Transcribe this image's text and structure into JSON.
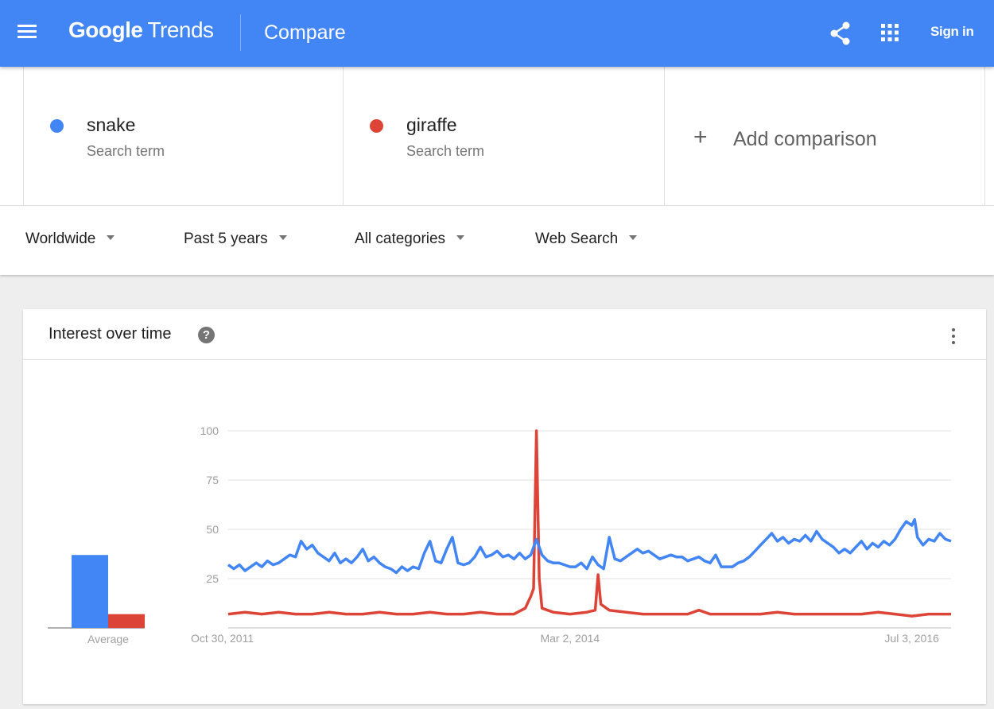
{
  "header": {
    "brand_google": "Google",
    "brand_trends": "Trends",
    "page_title": "Compare",
    "sign_in": "Sign in",
    "background_color": "#4285f4"
  },
  "terms": [
    {
      "name": "snake",
      "type": "Search term",
      "color": "#4285f4"
    },
    {
      "name": "giraffe",
      "type": "Search term",
      "color": "#db4437"
    }
  ],
  "add_comparison": "Add comparison",
  "filters": [
    {
      "label": "Worldwide"
    },
    {
      "label": "Past 5 years"
    },
    {
      "label": "All categories"
    },
    {
      "label": "Web Search"
    }
  ],
  "card": {
    "title": "Interest over time",
    "help_icon": "?"
  },
  "chart_data": {
    "type": "line",
    "title": "Interest over time",
    "ylim": [
      0,
      100
    ],
    "yticks": [
      25,
      50,
      75,
      100
    ],
    "xticks": [
      "Oct 30, 2011",
      "Mar 2, 2014",
      "Jul 3, 2016"
    ],
    "x_start": "Oct 30, 2011",
    "x_end": "Aug 2016",
    "grid": true,
    "series": [
      {
        "name": "snake",
        "color": "#4285f4",
        "average": 37,
        "points": [
          [
            "2011-10-30",
            32
          ],
          [
            "2011-11-13",
            30
          ],
          [
            "2011-11-27",
            32
          ],
          [
            "2011-12-11",
            29
          ],
          [
            "2011-12-25",
            31
          ],
          [
            "2012-01-08",
            33
          ],
          [
            "2012-01-22",
            31
          ],
          [
            "2012-02-05",
            34
          ],
          [
            "2012-02-19",
            32
          ],
          [
            "2012-03-04",
            33
          ],
          [
            "2012-03-18",
            35
          ],
          [
            "2012-04-01",
            37
          ],
          [
            "2012-04-15",
            36
          ],
          [
            "2012-04-29",
            44
          ],
          [
            "2012-05-13",
            40
          ],
          [
            "2012-05-27",
            42
          ],
          [
            "2012-06-10",
            38
          ],
          [
            "2012-06-24",
            36
          ],
          [
            "2012-07-08",
            34
          ],
          [
            "2012-07-22",
            38
          ],
          [
            "2012-08-05",
            33
          ],
          [
            "2012-08-19",
            35
          ],
          [
            "2012-09-02",
            33
          ],
          [
            "2012-09-16",
            36
          ],
          [
            "2012-09-30",
            40
          ],
          [
            "2012-10-14",
            34
          ],
          [
            "2012-10-28",
            36
          ],
          [
            "2012-11-11",
            33
          ],
          [
            "2012-11-25",
            31
          ],
          [
            "2012-12-09",
            30
          ],
          [
            "2012-12-23",
            28
          ],
          [
            "2013-01-06",
            31
          ],
          [
            "2013-01-20",
            29
          ],
          [
            "2013-02-03",
            31
          ],
          [
            "2013-02-17",
            30
          ],
          [
            "2013-03-03",
            38
          ],
          [
            "2013-03-17",
            44
          ],
          [
            "2013-03-31",
            34
          ],
          [
            "2013-04-14",
            33
          ],
          [
            "2013-04-28",
            40
          ],
          [
            "2013-05-12",
            46
          ],
          [
            "2013-05-26",
            33
          ],
          [
            "2013-06-09",
            32
          ],
          [
            "2013-06-23",
            33
          ],
          [
            "2013-07-07",
            36
          ],
          [
            "2013-07-21",
            41
          ],
          [
            "2013-08-04",
            36
          ],
          [
            "2013-08-18",
            37
          ],
          [
            "2013-09-01",
            39
          ],
          [
            "2013-09-15",
            36
          ],
          [
            "2013-09-29",
            37
          ],
          [
            "2013-10-13",
            35
          ],
          [
            "2013-10-27",
            38
          ],
          [
            "2013-11-10",
            35
          ],
          [
            "2013-11-24",
            37
          ],
          [
            "2013-12-08",
            45
          ],
          [
            "2013-12-22",
            37
          ],
          [
            "2014-01-05",
            34
          ],
          [
            "2014-01-19",
            33
          ],
          [
            "2014-02-02",
            33
          ],
          [
            "2014-02-16",
            32
          ],
          [
            "2014-03-02",
            31
          ],
          [
            "2014-03-16",
            31
          ],
          [
            "2014-03-30",
            33
          ],
          [
            "2014-04-13",
            30
          ],
          [
            "2014-04-27",
            36
          ],
          [
            "2014-05-11",
            32
          ],
          [
            "2014-05-25",
            30
          ],
          [
            "2014-06-08",
            46
          ],
          [
            "2014-06-22",
            35
          ],
          [
            "2014-07-06",
            34
          ],
          [
            "2014-07-20",
            36
          ],
          [
            "2014-08-03",
            38
          ],
          [
            "2014-08-17",
            40
          ],
          [
            "2014-08-31",
            38
          ],
          [
            "2014-09-14",
            39
          ],
          [
            "2014-09-28",
            37
          ],
          [
            "2014-10-12",
            35
          ],
          [
            "2014-10-26",
            36
          ],
          [
            "2014-11-09",
            37
          ],
          [
            "2014-11-23",
            36
          ],
          [
            "2014-12-07",
            36
          ],
          [
            "2014-12-21",
            34
          ],
          [
            "2015-01-04",
            35
          ],
          [
            "2015-01-18",
            36
          ],
          [
            "2015-02-01",
            34
          ],
          [
            "2015-02-15",
            33
          ],
          [
            "2015-03-01",
            37
          ],
          [
            "2015-03-15",
            31
          ],
          [
            "2015-03-29",
            31
          ],
          [
            "2015-04-12",
            31
          ],
          [
            "2015-04-26",
            33
          ],
          [
            "2015-05-10",
            34
          ],
          [
            "2015-05-24",
            36
          ],
          [
            "2015-06-07",
            39
          ],
          [
            "2015-06-21",
            42
          ],
          [
            "2015-07-05",
            45
          ],
          [
            "2015-07-19",
            48
          ],
          [
            "2015-08-02",
            44
          ],
          [
            "2015-08-16",
            46
          ],
          [
            "2015-08-30",
            43
          ],
          [
            "2015-09-13",
            45
          ],
          [
            "2015-09-27",
            44
          ],
          [
            "2015-10-11",
            47
          ],
          [
            "2015-10-25",
            44
          ],
          [
            "2015-11-08",
            49
          ],
          [
            "2015-11-22",
            45
          ],
          [
            "2015-12-06",
            43
          ],
          [
            "2015-12-20",
            41
          ],
          [
            "2016-01-03",
            38
          ],
          [
            "2016-01-17",
            40
          ],
          [
            "2016-01-31",
            38
          ],
          [
            "2016-02-14",
            41
          ],
          [
            "2016-02-28",
            44
          ],
          [
            "2016-03-13",
            40
          ],
          [
            "2016-03-27",
            43
          ],
          [
            "2016-04-10",
            41
          ],
          [
            "2016-04-24",
            44
          ],
          [
            "2016-05-08",
            42
          ],
          [
            "2016-05-22",
            45
          ],
          [
            "2016-06-05",
            50
          ],
          [
            "2016-06-19",
            54
          ],
          [
            "2016-07-03",
            52
          ],
          [
            "2016-07-10",
            55
          ],
          [
            "2016-07-17",
            46
          ],
          [
            "2016-07-31",
            42
          ],
          [
            "2016-08-14",
            45
          ],
          [
            "2016-08-28",
            44
          ],
          [
            "2016-09-11",
            48
          ],
          [
            "2016-09-25",
            45
          ],
          [
            "2016-10-09",
            44
          ]
        ]
      },
      {
        "name": "giraffe",
        "color": "#db4437",
        "average": 7,
        "points": [
          [
            "2011-10-30",
            7
          ],
          [
            "2011-12-11",
            8
          ],
          [
            "2012-01-22",
            7
          ],
          [
            "2012-03-04",
            8
          ],
          [
            "2012-04-15",
            7
          ],
          [
            "2012-05-27",
            7
          ],
          [
            "2012-07-08",
            8
          ],
          [
            "2012-08-19",
            7
          ],
          [
            "2012-09-30",
            7
          ],
          [
            "2012-11-11",
            8
          ],
          [
            "2012-12-23",
            7
          ],
          [
            "2013-02-03",
            7
          ],
          [
            "2013-03-17",
            8
          ],
          [
            "2013-04-28",
            7
          ],
          [
            "2013-06-09",
            7
          ],
          [
            "2013-07-21",
            8
          ],
          [
            "2013-09-01",
            7
          ],
          [
            "2013-10-13",
            7
          ],
          [
            "2013-11-10",
            10
          ],
          [
            "2013-11-24",
            16
          ],
          [
            "2013-12-01",
            20
          ],
          [
            "2013-12-08",
            100
          ],
          [
            "2013-12-15",
            25
          ],
          [
            "2013-12-22",
            10
          ],
          [
            "2014-01-19",
            8
          ],
          [
            "2014-03-02",
            7
          ],
          [
            "2014-04-13",
            8
          ],
          [
            "2014-05-04",
            9
          ],
          [
            "2014-05-11",
            27
          ],
          [
            "2014-05-18",
            12
          ],
          [
            "2014-06-08",
            9
          ],
          [
            "2014-07-20",
            8
          ],
          [
            "2014-08-31",
            7
          ],
          [
            "2014-10-12",
            7
          ],
          [
            "2014-11-23",
            7
          ],
          [
            "2014-12-21",
            7
          ],
          [
            "2015-01-18",
            9
          ],
          [
            "2015-02-15",
            7
          ],
          [
            "2015-03-29",
            7
          ],
          [
            "2015-05-10",
            7
          ],
          [
            "2015-06-21",
            7
          ],
          [
            "2015-08-02",
            8
          ],
          [
            "2015-09-13",
            7
          ],
          [
            "2015-10-25",
            7
          ],
          [
            "2015-12-06",
            7
          ],
          [
            "2016-01-17",
            7
          ],
          [
            "2016-02-28",
            7
          ],
          [
            "2016-04-10",
            8
          ],
          [
            "2016-05-22",
            7
          ],
          [
            "2016-07-03",
            6
          ],
          [
            "2016-08-14",
            7
          ],
          [
            "2016-09-25",
            7
          ],
          [
            "2016-10-09",
            7
          ]
        ]
      }
    ],
    "average_label": "Average"
  }
}
